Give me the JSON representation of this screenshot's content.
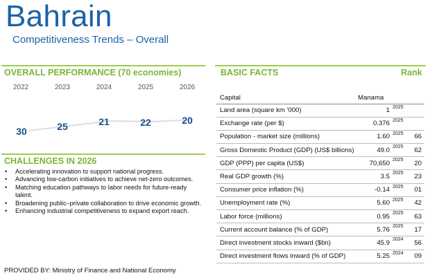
{
  "header": {
    "country": "Bahrain",
    "subtitle": "Competitiveness Trends – Overall"
  },
  "overall": {
    "title": "OVERALL PERFORMANCE  (70 economies)",
    "years": [
      "2022",
      "2023",
      "2024",
      "2025",
      "2026"
    ],
    "ranks": [
      "30",
      "25",
      "21",
      "22",
      "20"
    ]
  },
  "chart_data": {
    "type": "line",
    "x": [
      "2022",
      "2023",
      "2024",
      "2025",
      "2026"
    ],
    "y": [
      30,
      25,
      21,
      22,
      20
    ],
    "series": [
      {
        "values": [
          30,
          25,
          21,
          22,
          20
        ]
      }
    ]
  },
  "challenges": {
    "title": "CHALLENGES IN 2026",
    "items": [
      "Accelerating innovation to support national progress.",
      " Advancing low-carbon initiatives to achieve net-zero outcomes.",
      "Matching education pathways to labor needs for future-ready talent.",
      "Broadening public–private collaboration to drive economic growth.",
      "Enhancing industrial competitiveness to expand export reach."
    ]
  },
  "provided_by": "PROVIDED BY: Ministry of Finance and National Economy",
  "basic_facts": {
    "title": "BASIC FACTS",
    "rank_label": "Rank",
    "capital_label": "Capital",
    "capital_value": "Manama",
    "rows": [
      {
        "label": "Land area (square km '000)",
        "value": "1",
        "year": "2025",
        "rank": ""
      },
      {
        "label": "Exchange rate (per $)",
        "value": "0.376",
        "year": "2025",
        "rank": ""
      },
      {
        "label": "Population - market size (millions)",
        "value": "1.60",
        "year": "2025",
        "rank": "66"
      },
      {
        "label": "Gross Domestic Product (GDP) (US$ billions)",
        "value": "49.0",
        "year": "2025",
        "rank": "62"
      },
      {
        "label": "GDP (PPP) per capita (US$)",
        "value": "70,650",
        "year": "2025",
        "rank": "20"
      },
      {
        "label": "Real GDP growth (%)",
        "value": "3.5",
        "year": "2025",
        "rank": "23"
      },
      {
        "label": "Consumer price inflation (%)",
        "value": "-0.14",
        "year": "2025",
        "rank": "01"
      },
      {
        "label": "Unemployment rate (%)",
        "value": "5.60",
        "year": "2025",
        "rank": "42"
      },
      {
        "label": "Labor force (millions)",
        "value": "0.95",
        "year": "2025",
        "rank": "63"
      },
      {
        "label": "Current account balance (% of GDP)",
        "value": "5.76",
        "year": "2025",
        "rank": "17"
      },
      {
        "label": "Direct investment stocks inward ($bn)",
        "value": "45.9",
        "year": "2024",
        "rank": "56"
      },
      {
        "label": "Direct investment flows inward (% of GDP)",
        "value": "5.25",
        "year": "2024",
        "rank": "09"
      }
    ]
  }
}
